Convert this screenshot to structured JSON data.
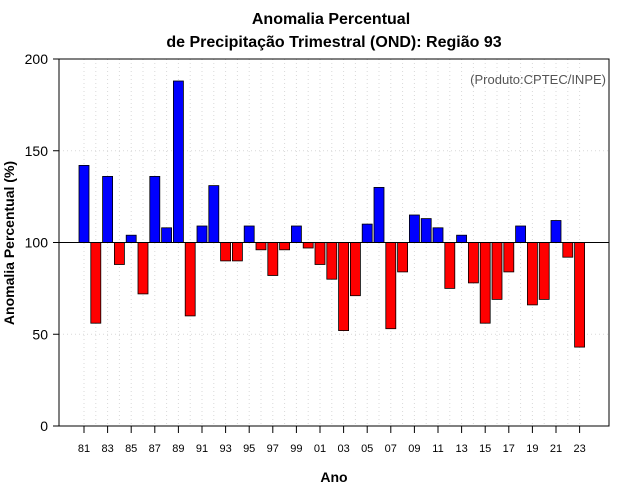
{
  "chart_data": {
    "type": "bar",
    "title": "Anomalia Percentual",
    "subtitle": "de Precipitação Trimestral (OND): Região 93",
    "xlabel": "Ano",
    "ylabel": "Anomalia Percentual (%)",
    "annotation": "(Produto:CPTEC/INPE)",
    "baseline": 100,
    "ylim": [
      0,
      200
    ],
    "yticks": [
      0,
      50,
      100,
      150,
      200
    ],
    "grid": true,
    "colors": {
      "above": "#0000ff",
      "below": "#ff0000",
      "edge": "#000000"
    },
    "categories": [
      "81",
      "82",
      "83",
      "84",
      "85",
      "86",
      "87",
      "88",
      "89",
      "90",
      "91",
      "92",
      "93",
      "94",
      "95",
      "96",
      "97",
      "98",
      "99",
      "00",
      "01",
      "02",
      "03",
      "04",
      "05",
      "06",
      "07",
      "08",
      "09",
      "10",
      "11",
      "12",
      "13",
      "14",
      "15",
      "16",
      "17",
      "18",
      "19",
      "20",
      "21",
      "22",
      "23"
    ],
    "tick_labels": [
      "81",
      "83",
      "85",
      "87",
      "89",
      "91",
      "93",
      "95",
      "97",
      "99",
      "01",
      "03",
      "05",
      "07",
      "09",
      "11",
      "13",
      "15",
      "17",
      "19",
      "21",
      "23"
    ],
    "values": [
      142,
      56,
      136,
      88,
      104,
      72,
      136,
      108,
      188,
      60,
      109,
      131,
      90,
      90,
      109,
      96,
      82,
      96,
      109,
      97,
      88,
      80,
      52,
      71,
      110,
      130,
      53,
      84,
      115,
      113,
      108,
      75,
      104,
      78,
      56,
      69,
      84,
      109,
      66,
      69,
      112,
      92,
      43
    ]
  }
}
